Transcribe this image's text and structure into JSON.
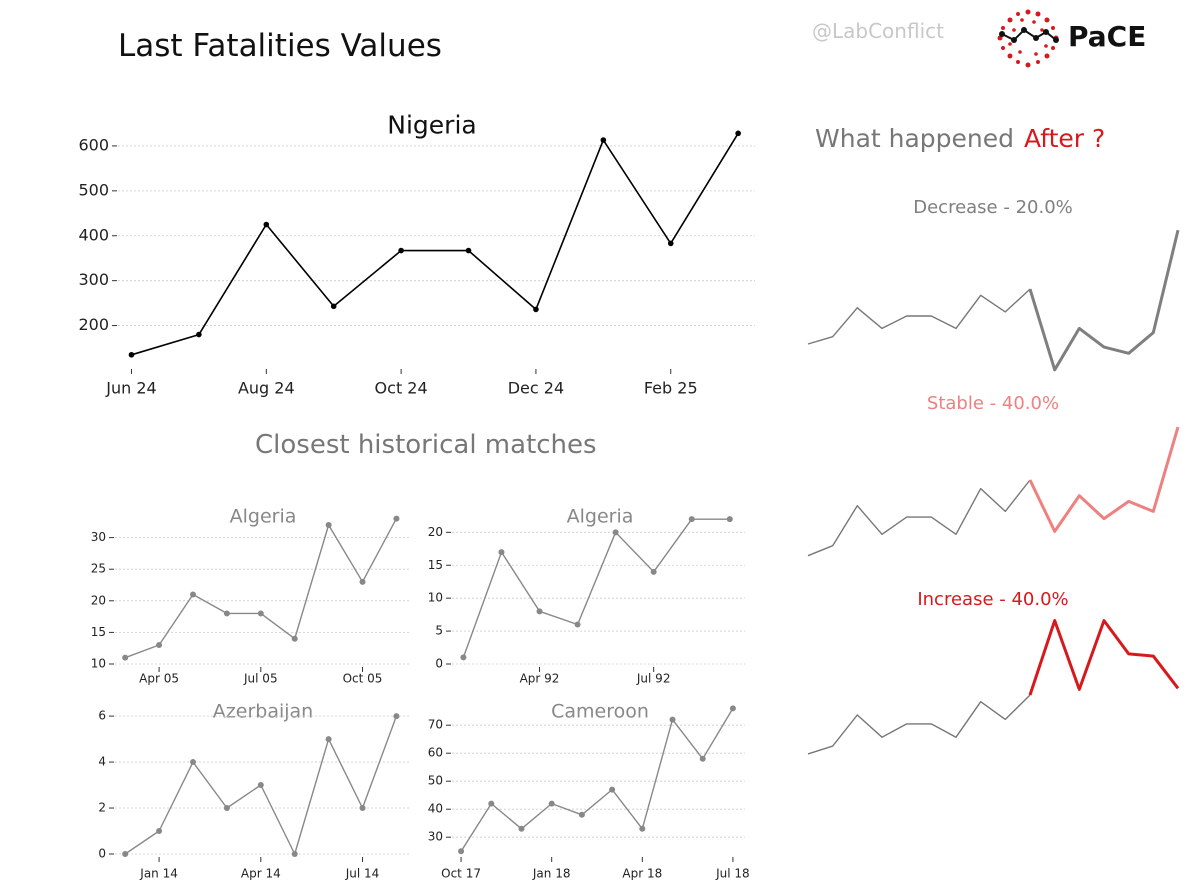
{
  "header": {
    "title": "Last Fatalities Values",
    "handle": "@LabConflict",
    "logo_text": "PaCE"
  },
  "section": {
    "matches_title": "Closest historical matches",
    "after_title_a": "What happened",
    "after_title_b": "After ?"
  },
  "colors": {
    "main_line": "#000000",
    "match_line": "#888888",
    "grid": "#cccccc",
    "decrease": "#7f7f7f",
    "stable": "#ef8080",
    "increase": "#d7191c"
  },
  "chart_data": [
    {
      "id": "nigeria",
      "type": "line",
      "title": "Nigeria",
      "x": [
        0,
        1,
        2,
        3,
        4,
        5,
        6,
        7,
        8,
        9
      ],
      "values": [
        135,
        180,
        425,
        243,
        367,
        367,
        236,
        613,
        383,
        628
      ],
      "xticks": [
        {
          "x": 0,
          "label": "Jun 24"
        },
        {
          "x": 2,
          "label": "Aug 24"
        },
        {
          "x": 4,
          "label": "Oct 24"
        },
        {
          "x": 6,
          "label": "Dec 24"
        },
        {
          "x": 8,
          "label": "Feb 25"
        }
      ],
      "yticks": [
        200,
        300,
        400,
        500,
        600
      ],
      "xlim": [
        -0.2,
        9.25
      ],
      "ylim": [
        110,
        680
      ],
      "grid": true
    },
    {
      "id": "algeria-05",
      "type": "line",
      "title": "Algeria",
      "x": [
        0,
        1,
        2,
        3,
        4,
        5,
        6,
        7,
        8
      ],
      "values": [
        11,
        13,
        21,
        18,
        18,
        14,
        32,
        23,
        33
      ],
      "xticks": [
        {
          "x": 1,
          "label": "Apr 05"
        },
        {
          "x": 4,
          "label": "Jul 05"
        },
        {
          "x": 7,
          "label": "Oct 05"
        }
      ],
      "yticks": [
        10,
        15,
        20,
        25,
        30
      ],
      "xlim": [
        -0.3,
        8.4
      ],
      "ylim": [
        10,
        35
      ],
      "grid": true
    },
    {
      "id": "algeria-92",
      "type": "line",
      "title": "Algeria",
      "x": [
        0,
        1,
        2,
        3,
        4,
        5,
        6,
        7
      ],
      "values": [
        1,
        17,
        8,
        6,
        20,
        14,
        22,
        22
      ],
      "xticks": [
        {
          "x": 2,
          "label": "Apr 92"
        },
        {
          "x": 5,
          "label": "Jul 92"
        }
      ],
      "yticks": [
        0,
        5,
        10,
        15,
        20
      ],
      "xlim": [
        -0.3,
        7.4
      ],
      "ylim": [
        0,
        24
      ],
      "grid": true
    },
    {
      "id": "azerbaijan",
      "type": "line",
      "title": "Azerbaijan",
      "x": [
        0,
        1,
        2,
        3,
        4,
        5,
        6,
        7,
        8
      ],
      "values": [
        0,
        1,
        4,
        2,
        3,
        0,
        5,
        2,
        6
      ],
      "xticks": [
        {
          "x": 1,
          "label": "Jan 14"
        },
        {
          "x": 4,
          "label": "Apr 14"
        },
        {
          "x": 7,
          "label": "Jul 14"
        }
      ],
      "yticks": [
        0,
        2,
        4,
        6
      ],
      "xlim": [
        -0.3,
        8.4
      ],
      "ylim": [
        0,
        6.7
      ],
      "grid": true
    },
    {
      "id": "cameroon",
      "type": "line",
      "title": "Cameroon",
      "x": [
        0,
        1,
        2,
        3,
        4,
        5,
        6,
        7,
        8,
        9
      ],
      "values": [
        25,
        42,
        33,
        42,
        38,
        47,
        33,
        72,
        58,
        76
      ],
      "xticks": [
        {
          "x": 0,
          "label": "Oct 17"
        },
        {
          "x": 3,
          "label": "Jan 18"
        },
        {
          "x": 6,
          "label": "Apr 18"
        },
        {
          "x": 9,
          "label": "Jul 18"
        }
      ],
      "yticks": [
        30,
        40,
        50,
        60,
        70
      ],
      "xlim": [
        -0.3,
        9.4
      ],
      "ylim": [
        24,
        79
      ],
      "grid": true
    },
    {
      "id": "after-decrease",
      "type": "line",
      "title": "Decrease - 20.0%",
      "history": [
        0.15,
        0.22,
        0.5,
        0.3,
        0.42,
        0.42,
        0.3,
        0.62,
        0.46,
        0.68
      ],
      "future": [
        0.68,
        -0.1,
        0.3,
        0.12,
        0.06,
        0.26,
        1.25
      ],
      "ylim": [
        -0.15,
        1.3
      ]
    },
    {
      "id": "after-stable",
      "type": "line",
      "title": "Stable - 40.0%",
      "history": [
        0.15,
        0.22,
        0.5,
        0.3,
        0.42,
        0.42,
        0.3,
        0.62,
        0.46,
        0.68
      ],
      "future": [
        0.68,
        0.32,
        0.57,
        0.41,
        0.53,
        0.46,
        1.05
      ],
      "ylim": [
        0.05,
        1.1
      ]
    },
    {
      "id": "after-increase",
      "type": "line",
      "title": "Increase - 40.0%",
      "history": [
        0.15,
        0.22,
        0.5,
        0.3,
        0.42,
        0.42,
        0.3,
        0.62,
        0.46,
        0.68
      ],
      "future": [
        0.68,
        1.35,
        0.73,
        1.35,
        1.05,
        1.03,
        0.74
      ],
      "ylim": [
        0.05,
        1.4
      ]
    }
  ]
}
